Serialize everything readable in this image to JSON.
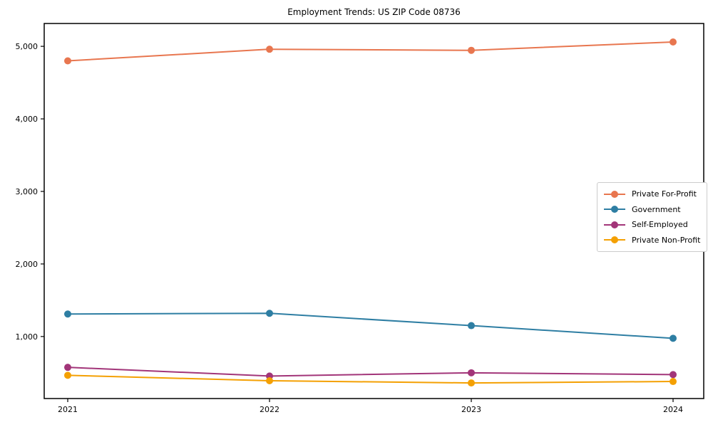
{
  "chart_data": {
    "type": "line",
    "title": "Employment Trends: US ZIP Code 08736",
    "x": [
      2021,
      2022,
      2023,
      2024
    ],
    "xtick_labels": [
      "2021",
      "2022",
      "2023",
      "2024"
    ],
    "series": [
      {
        "name": "Private For-Profit",
        "color": "#e8764f",
        "values": [
          4800,
          4960,
          4945,
          5060
        ]
      },
      {
        "name": "Government",
        "color": "#2e7ea3",
        "values": [
          1310,
          1320,
          1150,
          975
        ]
      },
      {
        "name": "Self-Employed",
        "color": "#a23579",
        "values": [
          575,
          455,
          500,
          475
        ]
      },
      {
        "name": "Private Non-Profit",
        "color": "#f4a003",
        "values": [
          465,
          390,
          360,
          380
        ]
      }
    ],
    "ylim": [
      145,
      5315
    ],
    "yticks": [
      {
        "value": 1000,
        "label": "1,000"
      },
      {
        "value": 2000,
        "label": "2,000"
      },
      {
        "value": 3000,
        "label": "3,000"
      },
      {
        "value": 4000,
        "label": "4,000"
      },
      {
        "value": 5000,
        "label": "5,000"
      }
    ],
    "grid": false,
    "legend_position": "right",
    "marker": "circle",
    "axis_color": "#000000",
    "legend_border_color": "#cccccc"
  }
}
